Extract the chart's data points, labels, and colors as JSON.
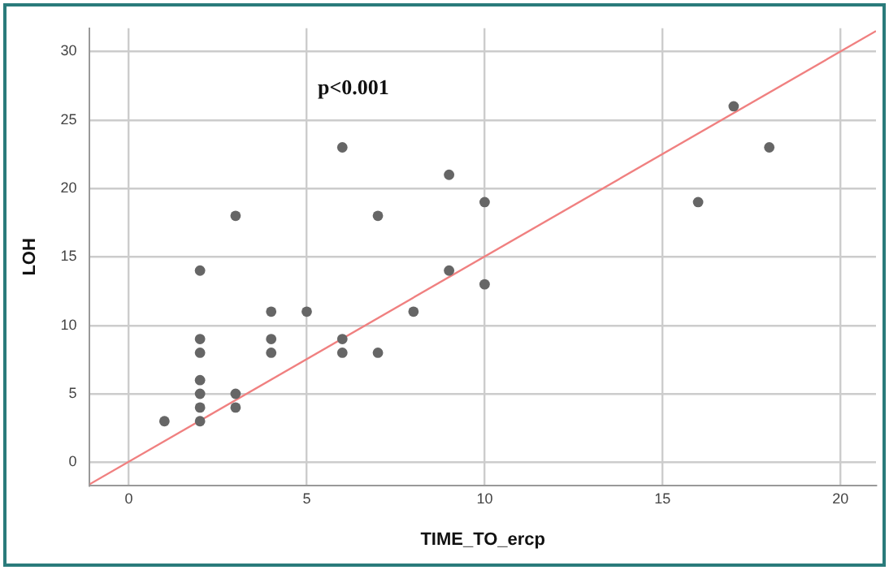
{
  "chart_data": {
    "type": "scatter",
    "xlabel": "TIME_TO_ercp",
    "ylabel": "LOH",
    "annotations": [
      "p<0.001"
    ],
    "xlim": [
      -1.1,
      21
    ],
    "xticks": [
      0,
      5,
      10,
      15,
      20
    ],
    "ylim": [
      -1.7,
      31.7
    ],
    "yticks": [
      0,
      5,
      10,
      15,
      20,
      25,
      30
    ],
    "grid": true,
    "legend": false,
    "marker": "circle",
    "series": [
      {
        "type": "scatter",
        "color": "#666666",
        "x": [
          1,
          2,
          2,
          2,
          2,
          2,
          2,
          2,
          3,
          3,
          3,
          4,
          4,
          4,
          5,
          6,
          6,
          6,
          7,
          7,
          8,
          9,
          9,
          10,
          10,
          16,
          17,
          18
        ],
        "values": [
          3,
          3,
          4,
          5,
          6,
          8,
          9,
          14,
          4,
          5,
          18,
          8,
          9,
          11,
          11,
          8,
          9,
          23,
          8,
          18,
          11,
          14,
          21,
          13,
          19,
          19,
          26,
          23
        ]
      },
      {
        "type": "line",
        "color": "#f08080",
        "marker": "none",
        "x": [
          -1.1,
          21
        ],
        "values": [
          -1.6,
          31.5
        ]
      }
    ]
  }
}
